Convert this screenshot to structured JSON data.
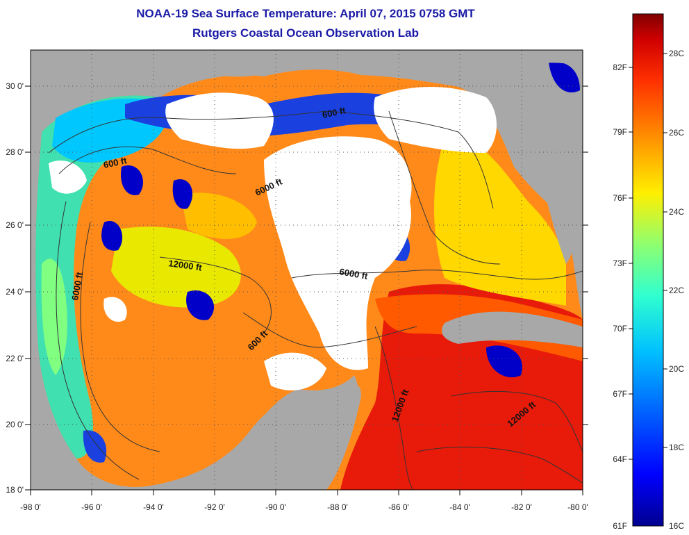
{
  "header": {
    "title": "NOAA-19 Sea Surface Temperature:  April 07, 2015 0758 GMT",
    "subtitle": "Rutgers Coastal Ocean Observation Lab"
  },
  "map": {
    "x_axis": {
      "range": [
        -98,
        -80
      ],
      "ticks": [
        "-98 0'",
        "-96 0'",
        "-94 0'",
        "-92 0'",
        "-90 0'",
        "-88 0'",
        "-86 0'",
        "-84 0'",
        "-82 0'",
        "-80 0'"
      ]
    },
    "y_axis": {
      "range": [
        18,
        31.3
      ],
      "ticks": [
        "30 0'",
        "28 0'",
        "26 0'",
        "24 0'",
        "22 0'",
        "20 0'",
        "18 0'"
      ]
    },
    "grid": "dotted",
    "contour_labels": [
      "600 ft",
      "600 ft",
      "6000 ft",
      "12000 ft",
      "6000 ft",
      "6000 ft",
      "600 ft",
      "12000 ft",
      "12000 ft"
    ],
    "colors": {
      "land": "#a8a8a8",
      "cloud": "#ffffff"
    }
  },
  "colorbar": {
    "fahrenheit_labels": [
      "82F",
      "79F",
      "76F",
      "73F",
      "70F",
      "67F",
      "64F",
      "61F"
    ],
    "celsius_labels": [
      "28C",
      "26C",
      "24C",
      "22C",
      "20C",
      "18C",
      "16C"
    ],
    "range_celsius": [
      16,
      29
    ],
    "colors": [
      "#00008f",
      "#0000ff",
      "#0060ff",
      "#00c0ff",
      "#30ffcf",
      "#8fff70",
      "#ffef00",
      "#ff8f00",
      "#ff3000",
      "#cf0000",
      "#800000"
    ]
  }
}
